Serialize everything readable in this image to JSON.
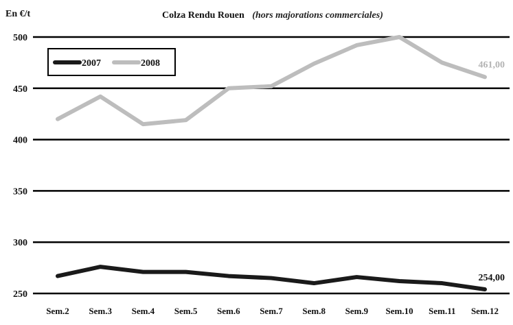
{
  "chart_data": {
    "type": "line",
    "title": "Colza Rendu Rouen",
    "subtitle": "(hors majorations commerciales)",
    "ylabel": "En €/t",
    "xlabel": "",
    "categories": [
      "Sem.2",
      "Sem.3",
      "Sem.4",
      "Sem.5",
      "Sem.6",
      "Sem.7",
      "Sem.8",
      "Sem.9",
      "Sem.10",
      "Sem.11",
      "Sem.12"
    ],
    "ylim": [
      250,
      500
    ],
    "yticks": [
      250,
      300,
      350,
      400,
      450,
      500
    ],
    "grid": true,
    "legend_position": "top-left",
    "series": [
      {
        "name": "2007",
        "color": "#1a1a1a",
        "values": [
          267,
          276,
          271,
          271,
          267,
          265,
          260,
          266,
          262,
          260,
          254
        ],
        "end_label": "254,00"
      },
      {
        "name": "2008",
        "color": "#bdbdbd",
        "values": [
          420,
          442,
          415,
          419,
          450,
          452,
          474,
          492,
          500,
          475,
          461
        ],
        "end_label": "461,00"
      }
    ]
  }
}
